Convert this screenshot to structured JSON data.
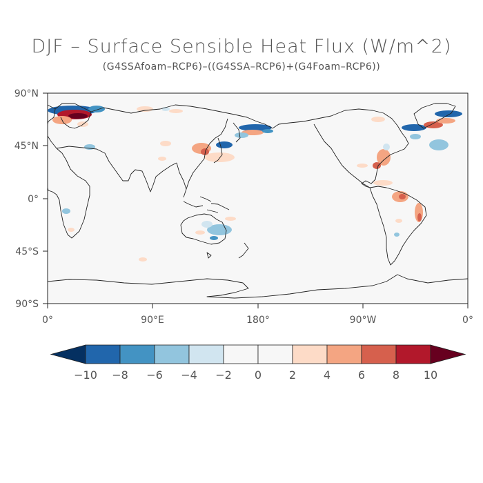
{
  "title": "DJF – Surface Sensible Heat Flux (W/m^2)",
  "subtitle": "(G4SSAfoam–RCP6)–((G4SSA–RCP6)+(G4Foam–RCP6))",
  "axes": {
    "lat_labels": [
      "90°N",
      "45°N",
      "0°",
      "45°S",
      "90°S"
    ],
    "lon_labels": [
      "0°",
      "90°E",
      "180°",
      "90°W",
      "0°"
    ]
  },
  "colorbar": {
    "labels": [
      "−10",
      "−8",
      "−6",
      "−4",
      "−2",
      "0",
      "2",
      "4",
      "6",
      "8",
      "10"
    ],
    "colors": [
      "#053061",
      "#2166ac",
      "#4393c3",
      "#92c5de",
      "#d1e5f0",
      "#f7f7f7",
      "#f7f7f7",
      "#fddbc7",
      "#f4a582",
      "#d6604d",
      "#b2182b",
      "#67001f"
    ]
  },
  "map": {
    "background": "#f7f7f7",
    "coast_color": "#222222"
  }
}
